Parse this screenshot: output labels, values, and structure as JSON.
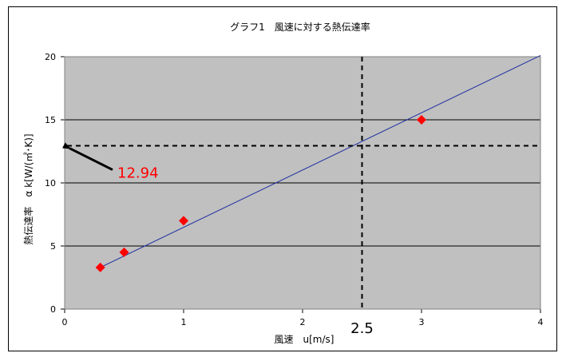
{
  "chart_data": {
    "type": "scatter",
    "title": "グラフ1　風速に対する熱伝達率",
    "xlabel": "風速　u[m/s]",
    "ylabel": "熱伝達率　α k[W/(㎡･K)]",
    "xlim": [
      0,
      4
    ],
    "ylim": [
      0,
      20
    ],
    "x_ticks": [
      "0",
      "1",
      "2",
      "3",
      "4"
    ],
    "y_ticks": [
      "0",
      "5",
      "10",
      "15",
      "20"
    ],
    "grid": true,
    "legend": "none",
    "series": [
      {
        "points": [
          {
            "x": 0.3,
            "y": 3.3
          },
          {
            "x": 0.5,
            "y": 4.5
          },
          {
            "x": 1.0,
            "y": 7.0
          },
          {
            "x": 3.0,
            "y": 15.0
          }
        ],
        "color": "#ff0000"
      }
    ],
    "trendline": {
      "x": [
        0.3,
        4.0
      ],
      "y": [
        3.3,
        20.1
      ],
      "color": "#1f2fa0"
    },
    "annotations": {
      "guide_x": 2.5,
      "guide_x_label": "2.5",
      "guide_y": 12.94,
      "guide_y_label": "12.94",
      "guide_y_label_color": "#ff0000"
    },
    "colors": {
      "plot_bg": "#c0c0c0",
      "grid": "#000000"
    }
  }
}
